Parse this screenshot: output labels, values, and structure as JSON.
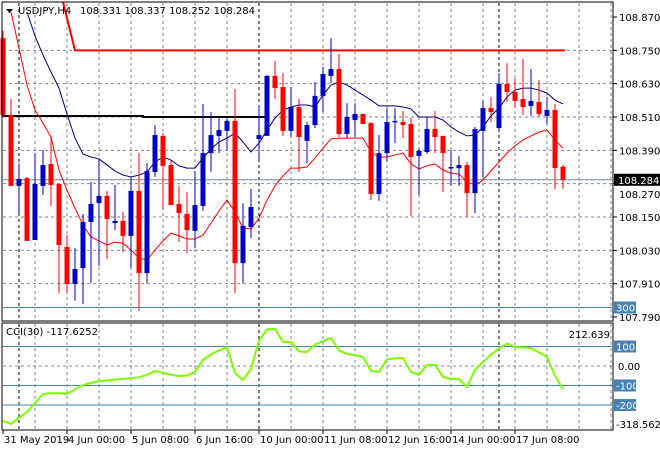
{
  "header": {
    "symbol_label": "USDJPY,H4",
    "ohlc": "108.331 108.337 108.252 108.284",
    "menu_icon": "triangle-down-icon"
  },
  "indicator": {
    "label": "CCI(30) -117.6252",
    "current": -117.6252,
    "axis_labels": {
      "max_box": "300",
      "max": "212.639",
      "l100": "100",
      "l0": "0.00",
      "lm100": "-100",
      "lm200": "-200",
      "min": "-318.5623"
    },
    "levels": [
      300,
      100,
      0,
      -100,
      -200
    ],
    "values": [
      -282,
      -297,
      -265,
      -236,
      -190,
      -144,
      -139,
      -140,
      -143,
      -120,
      -98,
      -86,
      -78,
      -74,
      -70,
      -66,
      -62,
      -58,
      -45,
      -26,
      -35,
      -45,
      -51,
      -49,
      -30,
      31,
      60,
      80,
      97,
      -36,
      -72,
      -15,
      130,
      188,
      190,
      123,
      123,
      75,
      72,
      110,
      128,
      144,
      80,
      62,
      56,
      46,
      -25,
      -31,
      34,
      40,
      41,
      -30,
      -45,
      5,
      5,
      -56,
      -66,
      -67,
      -108,
      -20,
      20,
      58,
      90,
      115,
      97,
      95,
      92,
      70,
      46,
      -50,
      -117.6252
    ]
  },
  "price_axis": {
    "ticks": [
      "108.870",
      "108.750",
      "108.630",
      "108.510",
      "108.390",
      "108.270",
      "108.150",
      "108.030",
      "107.910",
      "107.790"
    ],
    "current_price": "108.284"
  },
  "time_axis": {
    "labels": [
      "31 May 2019",
      "4 Jun 00:00",
      "5 Jun 08:00",
      "6 Jun 16:00",
      "10 Jun 00:00",
      "11 Jun 08:00",
      "12 Jun 16:00",
      "14 Jun 00:00",
      "17 Jun 08:00"
    ]
  },
  "colors": {
    "bull": "#0000c8",
    "bear": "#ff0000",
    "ma_blue": "#000080",
    "ma_red": "#ff0000",
    "cci": "#7cfc00",
    "cci_level": "#4682b4",
    "grid": "#778899",
    "support": "#000000",
    "resistance": "#ff0000",
    "price_line": "#778899"
  },
  "chart_data": {
    "type": "candlestick",
    "symbol": "USDJPY",
    "timeframe": "H4",
    "ylim": [
      107.79,
      108.87
    ],
    "resistance_level": 108.75,
    "support_level": 108.51,
    "ohlc": [
      [
        108.794,
        108.82,
        108.51,
        108.517
      ],
      [
        108.517,
        108.575,
        108.262,
        108.262
      ],
      [
        108.262,
        108.344,
        108.161,
        108.287
      ],
      [
        108.29,
        108.294,
        108.064,
        108.064
      ],
      [
        108.067,
        108.38,
        108.067,
        108.269
      ],
      [
        108.262,
        108.391,
        108.229,
        108.337
      ],
      [
        108.341,
        108.442,
        108.19,
        108.265
      ],
      [
        108.269,
        108.269,
        107.876,
        108.049
      ],
      [
        108.042,
        108.085,
        107.876,
        107.909
      ],
      [
        107.909,
        108.038,
        107.848,
        107.963
      ],
      [
        107.966,
        108.161,
        107.837,
        108.132
      ],
      [
        108.132,
        108.276,
        107.912,
        108.197
      ],
      [
        108.2,
        108.359,
        107.974,
        108.226
      ],
      [
        108.226,
        108.244,
        107.999,
        108.143
      ],
      [
        108.128,
        108.265,
        108.103,
        108.136
      ],
      [
        108.136,
        108.168,
        108.024,
        108.082
      ],
      [
        108.082,
        108.294,
        107.966,
        108.244
      ],
      [
        108.244,
        108.38,
        107.812,
        107.948
      ],
      [
        107.948,
        108.344,
        107.912,
        108.316
      ],
      [
        108.312,
        108.481,
        108.294,
        108.445
      ],
      [
        108.442,
        108.452,
        108.175,
        108.334
      ],
      [
        108.337,
        108.352,
        108.193,
        108.193
      ],
      [
        108.197,
        108.262,
        108.06,
        108.164
      ],
      [
        108.161,
        108.24,
        108.02,
        108.103
      ],
      [
        108.1,
        108.316,
        108.038,
        108.193
      ],
      [
        108.19,
        108.557,
        108.172,
        108.38
      ],
      [
        108.38,
        108.528,
        108.312,
        108.445
      ],
      [
        108.442,
        108.51,
        108.38,
        108.463
      ],
      [
        108.46,
        108.506,
        108.391,
        108.496
      ],
      [
        108.496,
        108.611,
        107.876,
        107.984
      ],
      [
        107.984,
        108.2,
        107.912,
        108.118
      ],
      [
        108.114,
        108.251,
        108.074,
        108.186
      ],
      [
        108.431,
        108.553,
        108.355,
        108.445
      ],
      [
        108.442,
        108.661,
        108.442,
        108.658
      ],
      [
        108.658,
        108.712,
        108.575,
        108.614
      ],
      [
        108.618,
        108.668,
        108.442,
        108.46
      ],
      [
        108.46,
        108.618,
        108.438,
        108.546
      ],
      [
        108.546,
        108.575,
        108.312,
        108.438
      ],
      [
        108.424,
        108.492,
        108.344,
        108.481
      ],
      [
        108.481,
        108.636,
        108.47,
        108.586
      ],
      [
        108.586,
        108.69,
        108.528,
        108.665
      ],
      [
        108.658,
        108.794,
        108.632,
        108.683
      ],
      [
        108.683,
        108.737,
        108.438,
        108.449
      ],
      [
        108.449,
        108.56,
        108.434,
        108.51
      ],
      [
        108.499,
        108.56,
        108.438,
        108.521
      ],
      [
        108.521,
        108.521,
        108.485,
        108.485
      ],
      [
        108.488,
        108.492,
        108.211,
        108.233
      ],
      [
        108.233,
        108.445,
        108.208,
        108.38
      ],
      [
        108.38,
        108.542,
        108.348,
        108.492
      ],
      [
        108.492,
        108.542,
        108.416,
        108.496
      ],
      [
        108.492,
        108.532,
        108.434,
        108.481
      ],
      [
        108.485,
        108.506,
        108.154,
        108.366
      ],
      [
        108.37,
        108.398,
        108.229,
        108.388
      ],
      [
        108.384,
        108.51,
        108.377,
        108.467
      ],
      [
        108.467,
        108.532,
        108.38,
        108.438
      ],
      [
        108.442,
        108.442,
        108.24,
        108.38
      ],
      [
        108.326,
        108.391,
        108.262,
        108.33
      ],
      [
        108.326,
        108.37,
        108.262,
        108.337
      ],
      [
        108.337,
        108.348,
        108.15,
        108.236
      ],
      [
        108.236,
        108.474,
        108.164,
        108.467
      ],
      [
        108.46,
        108.568,
        108.294,
        108.542
      ],
      [
        108.542,
        108.582,
        108.492,
        108.528
      ],
      [
        108.47,
        108.668,
        108.456,
        108.629
      ],
      [
        108.629,
        108.704,
        108.564,
        108.6
      ],
      [
        108.6,
        108.65,
        108.542,
        108.568
      ],
      [
        108.575,
        108.719,
        108.517,
        108.546
      ],
      [
        108.55,
        108.683,
        108.514,
        108.568
      ],
      [
        108.564,
        108.643,
        108.51,
        108.521
      ],
      [
        108.514,
        108.582,
        108.485,
        108.535
      ],
      [
        108.535,
        108.557,
        108.251,
        108.326
      ],
      [
        108.331,
        108.337,
        108.252,
        108.284
      ]
    ],
    "ma_blue": [
      null,
      null,
      null,
      108.888,
      108.802,
      108.733,
      108.672,
      108.614,
      108.521,
      108.434,
      108.377,
      108.366,
      108.359,
      108.337,
      108.316,
      108.301,
      108.294,
      108.301,
      108.312,
      108.348,
      108.366,
      108.355,
      108.334,
      108.326,
      108.326,
      108.362,
      108.395,
      108.42,
      108.434,
      108.452,
      108.42,
      108.384,
      108.416,
      108.463,
      108.506,
      108.535,
      108.546,
      108.553,
      108.553,
      108.546,
      108.589,
      108.625,
      108.636,
      108.625,
      108.607,
      108.589,
      108.571,
      108.55,
      108.55,
      108.55,
      108.546,
      108.539,
      108.51,
      108.51,
      108.51,
      108.499,
      108.474,
      108.456,
      108.442,
      108.445,
      108.474,
      108.514,
      108.542,
      108.582,
      108.607,
      108.614,
      108.614,
      108.607,
      108.596,
      108.571,
      108.557
    ],
    "ma_red": [
      null,
      108.888,
      108.758,
      108.625,
      108.535,
      108.488,
      108.438,
      108.319,
      108.247,
      108.182,
      108.121,
      108.078,
      108.064,
      108.049,
      108.06,
      108.056,
      108.031,
      108.002,
      107.995,
      108.031,
      108.064,
      108.092,
      108.082,
      108.071,
      108.071,
      108.085,
      108.128,
      108.172,
      108.211,
      108.168,
      108.11,
      108.107,
      108.146,
      108.211,
      108.262,
      108.298,
      108.326,
      108.326,
      108.33,
      108.362,
      108.398,
      108.431,
      108.434,
      108.434,
      108.434,
      108.434,
      108.384,
      108.366,
      108.366,
      108.373,
      108.38,
      108.341,
      108.323,
      108.334,
      108.341,
      108.319,
      108.308,
      108.305,
      108.276,
      108.265,
      108.283,
      108.316,
      108.348,
      108.38,
      108.406,
      108.427,
      108.442,
      108.456,
      108.463,
      108.427,
      108.398
    ]
  }
}
